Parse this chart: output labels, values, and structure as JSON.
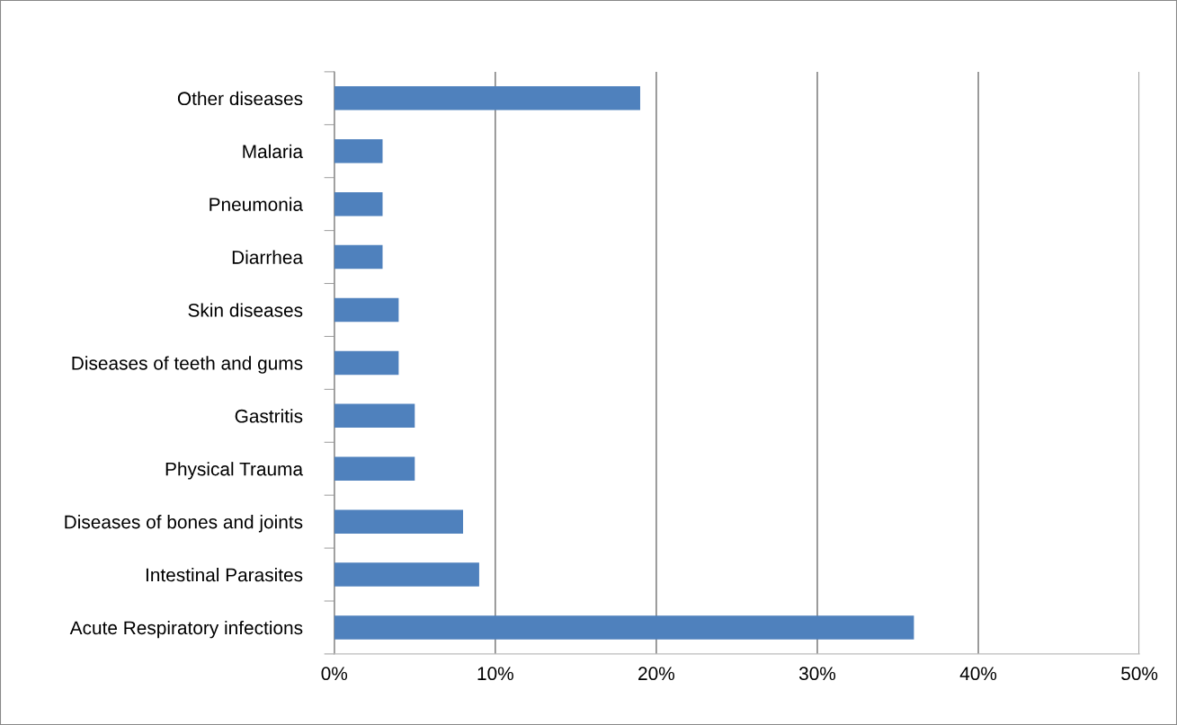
{
  "chart_data": {
    "type": "bar",
    "orientation": "horizontal",
    "categories": [
      "Other diseases",
      "Malaria",
      "Pneumonia",
      "Diarrhea",
      "Skin diseases",
      "Diseases of teeth and gums",
      "Gastritis",
      "Physical Trauma",
      "Diseases of bones and joints",
      "Intestinal Parasites",
      "Acute Respiratory infections"
    ],
    "values": [
      19,
      3,
      3,
      3,
      4,
      4,
      5,
      5,
      8,
      9,
      36
    ],
    "color": "#4f81bd",
    "xlim": [
      0,
      50
    ],
    "xticks": [
      {
        "value": 0,
        "label": "0%"
      },
      {
        "value": 10,
        "label": "10%"
      },
      {
        "value": 20,
        "label": "20%"
      },
      {
        "value": 30,
        "label": "30%"
      },
      {
        "value": 40,
        "label": "40%"
      },
      {
        "value": 50,
        "label": "50%"
      }
    ],
    "grid": "x"
  }
}
